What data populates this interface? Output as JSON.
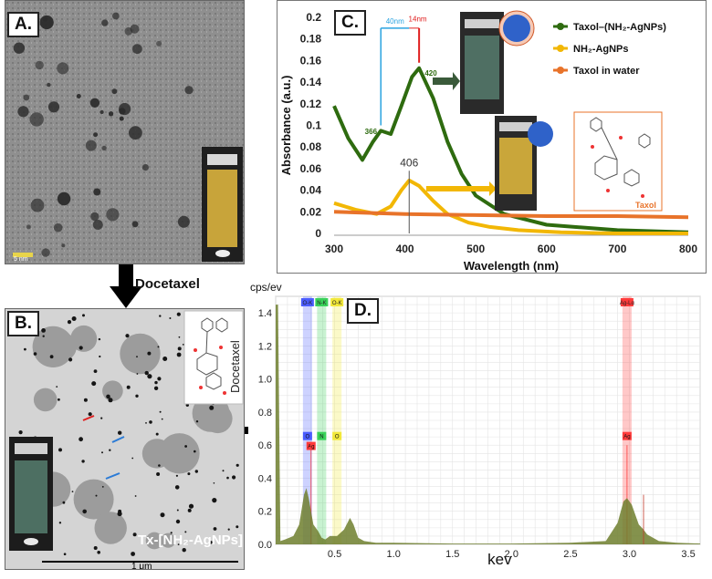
{
  "panel_a": {
    "label": "A.",
    "scale_bar": "5 nm"
  },
  "arrow_a_to_b": {
    "label": "Docetaxel"
  },
  "panel_b": {
    "label": "B.",
    "overlay_text": "Tx-[NH₂-AgNPs]",
    "scale_bar": "1 μm",
    "molecule_label": "Docetaxel"
  },
  "panel_c": {
    "label": "C.",
    "annotations": {
      "shift_40": "40nm",
      "shift_14": "14nm",
      "peak_420": "420",
      "peak_366": "366",
      "peak_406": "406",
      "taxol_inset": "Taxol"
    },
    "colors": {
      "green": "#2e6b0f",
      "yellow": "#f2b705",
      "orange": "#e8732a"
    }
  },
  "panel_d": {
    "label": "D.",
    "ylabel": "cps/ev",
    "xlabel": "kev",
    "bands": [
      {
        "name": "O-K",
        "short": "O",
        "color": "#4a5cff"
      },
      {
        "name": "N-K",
        "short": "N",
        "color": "#39d15a"
      },
      {
        "name": "O-K",
        "short": "O",
        "color": "#f2e83a"
      },
      {
        "name": "Ag-Lα",
        "short": "Ag",
        "color": "#ff3b3b"
      }
    ],
    "ag_small": "Ag"
  },
  "chart_data": [
    {
      "type": "line",
      "xlabel": "Wavelength (nm)",
      "ylabel": "Absorbance (a.u.)",
      "xlim": [
        300,
        800
      ],
      "ylim": [
        0,
        0.2
      ],
      "xticks": [
        "300",
        "400",
        "500",
        "600",
        "700",
        "800"
      ],
      "yticks": [
        "0",
        "0.02",
        "0.04",
        "0.06",
        "0.08",
        "0.1",
        "0.12",
        "0.14",
        "0.16",
        "0.18",
        "0.2"
      ],
      "legend_position": "top-right",
      "series": [
        {
          "name": "Taxol–(NH₂-AgNPs)",
          "color": "#2e6b0f",
          "x": [
            300,
            320,
            340,
            355,
            366,
            380,
            395,
            410,
            420,
            440,
            460,
            480,
            500,
            540,
            600,
            700,
            800
          ],
          "y": [
            0.118,
            0.088,
            0.068,
            0.085,
            0.095,
            0.092,
            0.118,
            0.145,
            0.153,
            0.125,
            0.085,
            0.055,
            0.035,
            0.018,
            0.008,
            0.003,
            0.001
          ]
        },
        {
          "name": "NH₂-AgNPs",
          "color": "#f2b705",
          "x": [
            300,
            330,
            360,
            380,
            395,
            406,
            420,
            440,
            460,
            490,
            520,
            560,
            620,
            700,
            800
          ],
          "y": [
            0.028,
            0.022,
            0.018,
            0.025,
            0.04,
            0.049,
            0.044,
            0.03,
            0.018,
            0.01,
            0.006,
            0.003,
            0.001,
            0.0,
            0.0
          ]
        },
        {
          "name": "Taxol in water",
          "color": "#e8732a",
          "x": [
            300,
            400,
            500,
            600,
            700,
            800
          ],
          "y": [
            0.02,
            0.018,
            0.017,
            0.016,
            0.016,
            0.015
          ]
        }
      ]
    },
    {
      "type": "area",
      "xlabel": "kev",
      "ylabel": "cps/ev",
      "xlim": [
        0,
        3.6
      ],
      "ylim": [
        0,
        1.5
      ],
      "xticks": [
        "0.5",
        "1.0",
        "1.5",
        "2.0",
        "2.5",
        "3.0",
        "3.5"
      ],
      "yticks": [
        "0.0",
        "0.2",
        "0.4",
        "0.6",
        "0.8",
        "1.0",
        "1.2",
        "1.4"
      ],
      "series": [
        {
          "name": "",
          "color": "#6e7f2e",
          "x": [
            0,
            0.02,
            0.04,
            0.08,
            0.15,
            0.2,
            0.24,
            0.26,
            0.28,
            0.32,
            0.36,
            0.39,
            0.42,
            0.46,
            0.52,
            0.58,
            0.63,
            0.66,
            0.7,
            0.75,
            0.85,
            1.0,
            1.5,
            2.0,
            2.5,
            2.8,
            2.9,
            2.95,
            2.98,
            3.02,
            3.08,
            3.12,
            3.15,
            3.25,
            3.4,
            3.6
          ],
          "y": [
            1.45,
            1.45,
            0.02,
            0.03,
            0.05,
            0.12,
            0.3,
            0.34,
            0.28,
            0.12,
            0.08,
            0.04,
            0.03,
            0.05,
            0.05,
            0.09,
            0.16,
            0.12,
            0.04,
            0.02,
            0.01,
            0.01,
            0.005,
            0.005,
            0.01,
            0.02,
            0.13,
            0.26,
            0.28,
            0.24,
            0.12,
            0.09,
            0.06,
            0.02,
            0.01,
            0.005
          ]
        }
      ]
    }
  ]
}
